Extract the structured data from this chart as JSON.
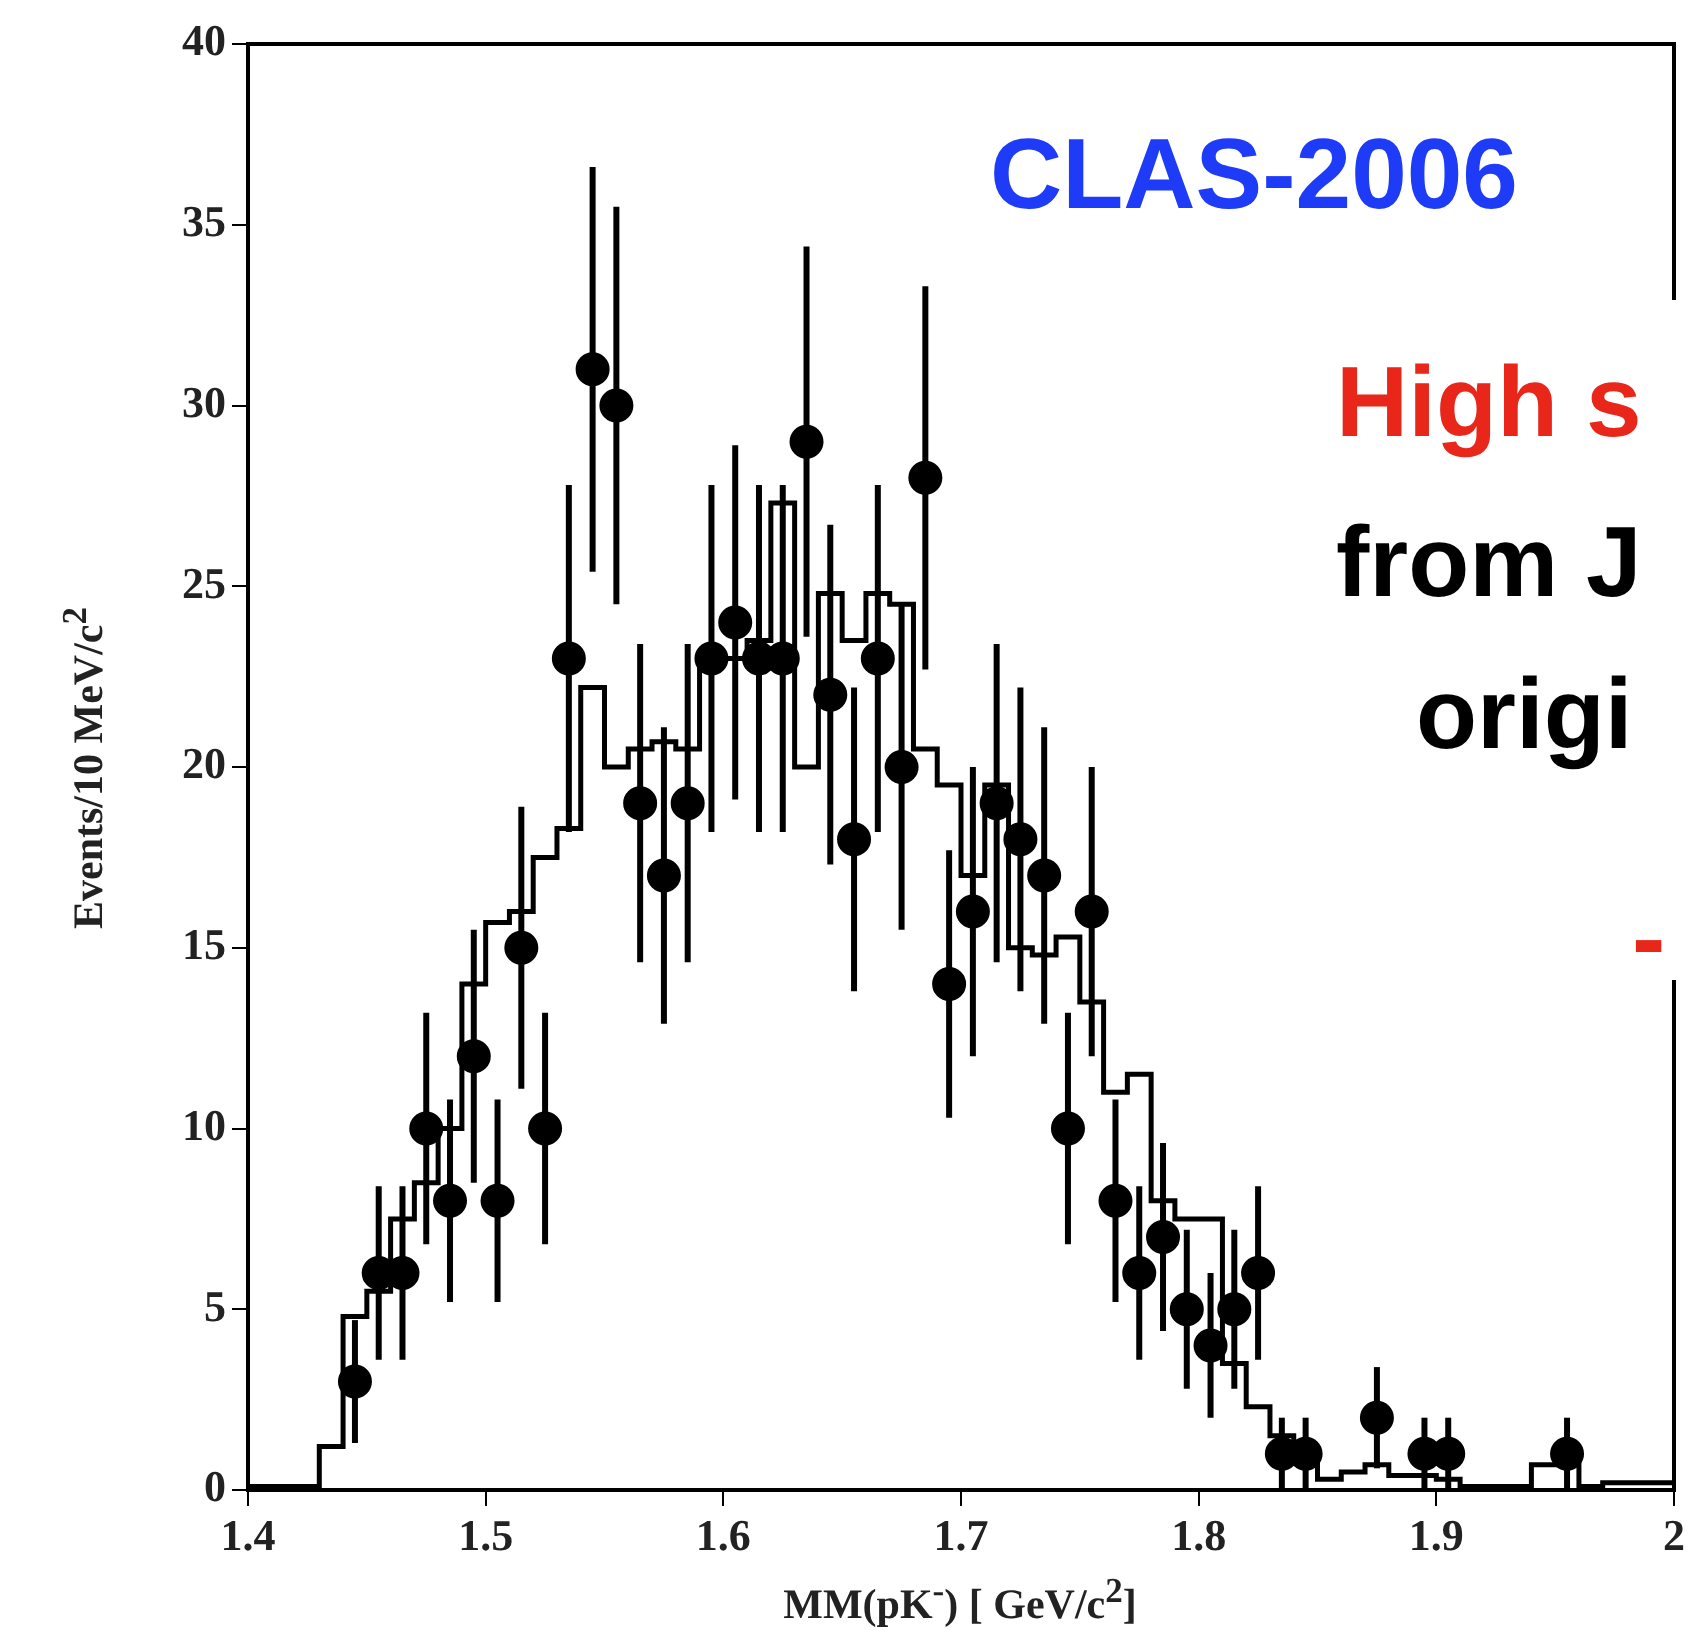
{
  "chart_data": {
    "type": "histogram",
    "xlabel": "MM(pK$^{-}$) [ GeV/c$^{2}$]",
    "ylabel": "Events/10 MeV/c$^{2}$",
    "annotations": [
      "CLAS-2006",
      "High s",
      "from J",
      "origi",
      "-"
    ],
    "xlim": [
      1.4,
      2.0
    ],
    "xticks": [
      1.4,
      1.5,
      1.6,
      1.7,
      1.8,
      1.9,
      2
    ],
    "ylim": [
      0,
      40
    ],
    "yticks": [
      0,
      5,
      10,
      15,
      20,
      25,
      30,
      35,
      40
    ],
    "grid": false,
    "legend": false,
    "marker": "circle",
    "series": [
      {
        "type": "histogram",
        "color": "#000000",
        "bins": [
          1.4,
          1.41,
          1.42,
          1.43,
          1.44,
          1.45,
          1.46,
          1.47,
          1.48,
          1.49,
          1.5,
          1.51,
          1.52,
          1.53,
          1.54,
          1.55,
          1.56,
          1.57,
          1.58,
          1.59,
          1.6,
          1.61,
          1.62,
          1.63,
          1.64,
          1.65,
          1.66,
          1.67,
          1.68,
          1.69,
          1.7,
          1.71,
          1.72,
          1.73,
          1.74,
          1.75,
          1.76,
          1.77,
          1.78,
          1.79,
          1.8,
          1.81,
          1.82,
          1.83,
          1.84,
          1.85,
          1.86,
          1.87,
          1.88,
          1.89,
          1.9,
          1.91,
          1.92,
          1.93,
          1.94,
          1.95,
          1.96,
          1.97,
          1.98,
          1.99,
          2.0
        ],
        "values": [
          0.1,
          0.1,
          0.1,
          1.2,
          4.8,
          5.5,
          7.5,
          8.5,
          10,
          14,
          15.7,
          16,
          17.5,
          18.3,
          22.2,
          20,
          20.5,
          20.7,
          20.5,
          23,
          23,
          23.5,
          27.3,
          20,
          24.8,
          23.5,
          24.8,
          24.5,
          20.5,
          19.5,
          17,
          19.5,
          15,
          14.8,
          15.3,
          13.5,
          11,
          11.5,
          8,
          7.5,
          7.5,
          3.5,
          2.3,
          1.5,
          0.8,
          0.3,
          0.5,
          0.7,
          0.4,
          0.4,
          0.3,
          0.1,
          0.1,
          0.1,
          0.7,
          0.7,
          0.1,
          0.2,
          0.2,
          0.2
        ]
      },
      {
        "type": "scatter",
        "color": "#000000",
        "x": [
          1.445,
          1.455,
          1.465,
          1.475,
          1.485,
          1.495,
          1.505,
          1.515,
          1.525,
          1.535,
          1.545,
          1.555,
          1.565,
          1.575,
          1.585,
          1.595,
          1.605,
          1.615,
          1.625,
          1.635,
          1.645,
          1.655,
          1.665,
          1.675,
          1.685,
          1.695,
          1.705,
          1.715,
          1.725,
          1.735,
          1.745,
          1.755,
          1.765,
          1.775,
          1.785,
          1.795,
          1.805,
          1.815,
          1.825,
          1.835,
          1.845,
          1.875,
          1.895,
          1.905,
          1.955
        ],
        "values": [
          3,
          6,
          6,
          10,
          8,
          12,
          8,
          15,
          10,
          23,
          31,
          30,
          19,
          17,
          19,
          23,
          24,
          23,
          23,
          29,
          22,
          18,
          23,
          20,
          28,
          14,
          16,
          19,
          18,
          17,
          10,
          16,
          8,
          6,
          7,
          5,
          4,
          5,
          6,
          1,
          1,
          2,
          1,
          1,
          1
        ],
        "errors": [
          1.7,
          2.4,
          2.4,
          3.2,
          2.8,
          3.5,
          2.8,
          3.9,
          3.2,
          4.8,
          5.6,
          5.5,
          4.4,
          4.1,
          4.4,
          4.8,
          4.9,
          4.8,
          4.8,
          5.4,
          4.7,
          4.2,
          4.8,
          4.5,
          5.3,
          3.7,
          4,
          4.4,
          4.2,
          4.1,
          3.2,
          4,
          2.8,
          2.4,
          2.6,
          2.2,
          2,
          2.2,
          2.4,
          1,
          1,
          1.4,
          1,
          1,
          1
        ]
      }
    ]
  }
}
